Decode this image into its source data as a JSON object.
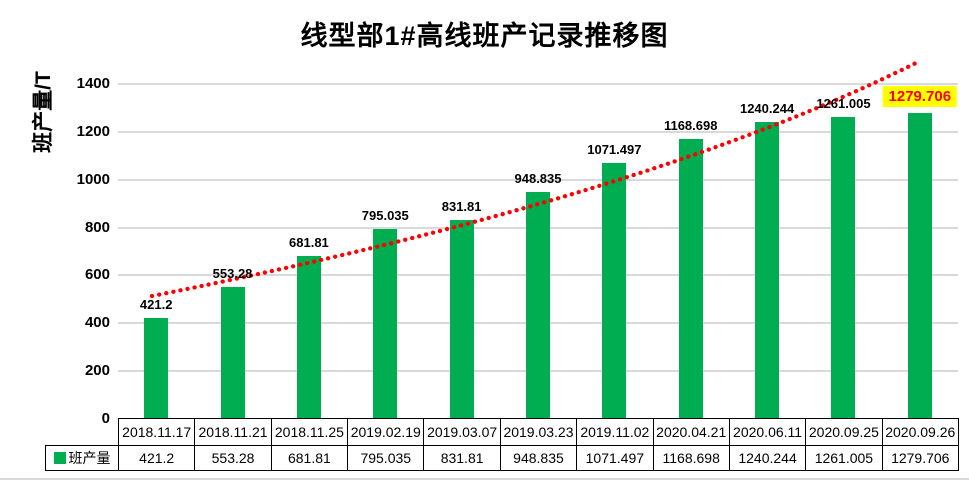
{
  "chart_data": {
    "type": "bar",
    "title": "线型部1#高线班产记录推移图",
    "ylabel": "班产量/T",
    "xlabel": "",
    "categories": [
      "2018.11.17",
      "2018.11.21",
      "2018.11.25",
      "2019.02.19",
      "2019.03.07",
      "2019.03.23",
      "2019.11.02",
      "2020.04.21",
      "2020.06.11",
      "2020.09.25",
      "2020.09.26"
    ],
    "series": [
      {
        "name": "班产量",
        "values_display": [
          "421.2",
          "553.28",
          "681.81",
          "795.035",
          "831.81",
          "948.835",
          "1071.497",
          "1168.698",
          "1240.244",
          "1261.005",
          "1279.706"
        ],
        "values": [
          421.2,
          553.28,
          681.81,
          795.035,
          831.81,
          948.835,
          1071.497,
          1168.698,
          1240.244,
          1261.005,
          1279.706
        ]
      }
    ],
    "ylim": [
      0,
      1400
    ],
    "ytick_interval": 200,
    "grid": true,
    "legend_position": "table-row-header",
    "bar_color": "#00ad50",
    "trendline": {
      "style": "dotted",
      "color": "#ff0000"
    },
    "last_label_highlight": {
      "background": "#ffff00",
      "text_color": "#ff0000"
    }
  },
  "legend": {
    "label": "班产量"
  }
}
